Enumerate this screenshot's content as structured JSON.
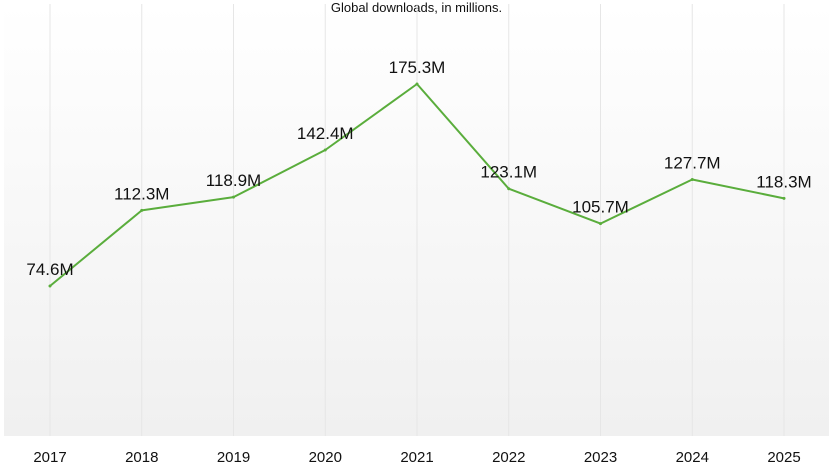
{
  "chart_data": {
    "type": "line",
    "subtitle": "Global downloads, in millions.",
    "categories": [
      "2017",
      "2018",
      "2019",
      "2020",
      "2021",
      "2022",
      "2023",
      "2024",
      "2025"
    ],
    "series": [
      {
        "name": "Global downloads",
        "values": [
          74.6,
          112.3,
          118.9,
          142.4,
          175.3,
          123.1,
          105.7,
          127.7,
          118.3
        ],
        "labels": [
          "74.6M",
          "112.3M",
          "118.9M",
          "142.4M",
          "175.3M",
          "123.1M",
          "105.7M",
          "127.7M",
          "118.3M"
        ]
      }
    ],
    "ylim": [
      0,
      200
    ],
    "grid": "vertical",
    "colors": {
      "line": "#5aad3c",
      "grid": "#e6e6e6",
      "text": "#111111",
      "background_top": "#ffffff",
      "background_bottom": "#f0f0f0"
    }
  }
}
